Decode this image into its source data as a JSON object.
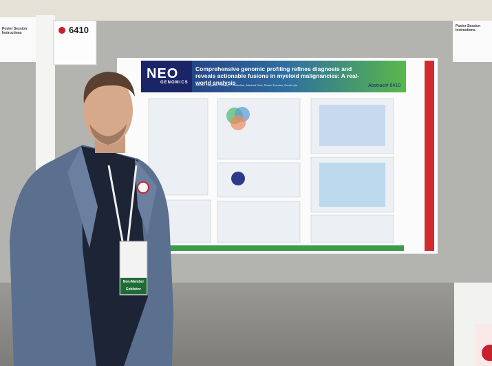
{
  "sign": {
    "number": "6410"
  },
  "instructions_left": "Poster Session Instructions",
  "instructions_right": "Poster Session Instructions",
  "poster": {
    "logo": "NEO",
    "logo_sub": "GENOMICS",
    "title": "Comprehensive genomic profiling refines diagnosis and reveals actionable fusions in myeloid malignancies: A real-world analysis",
    "authors": "John M. Furgason, Timothy J. Stuttmiller, Manfred Paul, Robert Fuentes, Derek Lyle",
    "abstract": "Abstract# 6410"
  },
  "badge": {
    "member": "Non-Member",
    "role": "Exhibitor"
  }
}
